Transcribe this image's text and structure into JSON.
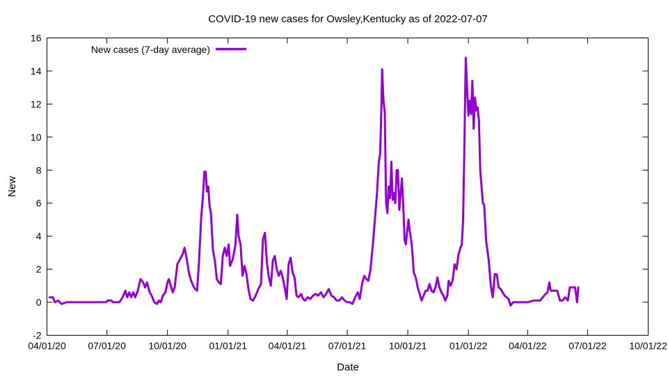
{
  "chart_data": {
    "type": "line",
    "title": "COVID-19 new cases for Owsley,Kentucky as of 2022-07-07",
    "xlabel": "Date",
    "ylabel": "New",
    "ylim": [
      -2,
      16
    ],
    "yticks": [
      -2,
      0,
      2,
      4,
      6,
      8,
      10,
      12,
      14,
      16
    ],
    "xlim": [
      "2020-04-01",
      "2022-10-01"
    ],
    "xticks": [
      {
        "date": "2020-04-01",
        "label": "04/01/20"
      },
      {
        "date": "2020-07-01",
        "label": "07/01/20"
      },
      {
        "date": "2020-10-01",
        "label": "10/01/20"
      },
      {
        "date": "2021-01-01",
        "label": "01/01/21"
      },
      {
        "date": "2021-04-01",
        "label": "04/01/21"
      },
      {
        "date": "2021-07-01",
        "label": "07/01/21"
      },
      {
        "date": "2021-10-01",
        "label": "10/01/21"
      },
      {
        "date": "2022-01-01",
        "label": "01/01/22"
      },
      {
        "date": "2022-04-01",
        "label": "04/01/22"
      },
      {
        "date": "2022-07-01",
        "label": "07/01/22"
      },
      {
        "date": "2022-10-01",
        "label": "10/01/22"
      }
    ],
    "legend": "top-left",
    "grid": false,
    "series": [
      {
        "name": "New cases (7-day average)",
        "color": "#9400d3",
        "points": [
          [
            "2020-04-05",
            0.3
          ],
          [
            "2020-04-10",
            0.3
          ],
          [
            "2020-04-13",
            0.0
          ],
          [
            "2020-04-18",
            0.1
          ],
          [
            "2020-04-23",
            -0.1
          ],
          [
            "2020-05-01",
            0.0
          ],
          [
            "2020-05-20",
            0.0
          ],
          [
            "2020-06-15",
            0.0
          ],
          [
            "2020-06-30",
            0.0
          ],
          [
            "2020-07-02",
            0.1
          ],
          [
            "2020-07-08",
            0.1
          ],
          [
            "2020-07-10",
            0.0
          ],
          [
            "2020-07-20",
            0.0
          ],
          [
            "2020-07-25",
            0.3
          ],
          [
            "2020-07-29",
            0.7
          ],
          [
            "2020-08-01",
            0.3
          ],
          [
            "2020-08-04",
            0.6
          ],
          [
            "2020-08-07",
            0.3
          ],
          [
            "2020-08-10",
            0.6
          ],
          [
            "2020-08-13",
            0.3
          ],
          [
            "2020-08-17",
            0.7
          ],
          [
            "2020-08-21",
            1.4
          ],
          [
            "2020-08-25",
            1.2
          ],
          [
            "2020-08-28",
            0.9
          ],
          [
            "2020-08-31",
            1.2
          ],
          [
            "2020-09-04",
            0.6
          ],
          [
            "2020-09-07",
            0.4
          ],
          [
            "2020-09-11",
            0.0
          ],
          [
            "2020-09-15",
            -0.1
          ],
          [
            "2020-09-18",
            0.1
          ],
          [
            "2020-09-21",
            0.0
          ],
          [
            "2020-09-24",
            0.4
          ],
          [
            "2020-09-28",
            0.6
          ],
          [
            "2020-10-01",
            1.2
          ],
          [
            "2020-10-03",
            1.4
          ],
          [
            "2020-10-06",
            1.0
          ],
          [
            "2020-10-09",
            0.6
          ],
          [
            "2020-10-12",
            0.9
          ],
          [
            "2020-10-16",
            2.3
          ],
          [
            "2020-10-20",
            2.6
          ],
          [
            "2020-10-24",
            2.9
          ],
          [
            "2020-10-27",
            3.3
          ],
          [
            "2020-10-30",
            2.7
          ],
          [
            "2020-11-03",
            1.7
          ],
          [
            "2020-11-06",
            1.3
          ],
          [
            "2020-11-09",
            1.0
          ],
          [
            "2020-11-12",
            0.8
          ],
          [
            "2020-11-15",
            0.7
          ],
          [
            "2020-11-18",
            2.5
          ],
          [
            "2020-11-21",
            5.0
          ],
          [
            "2020-11-24",
            6.5
          ],
          [
            "2020-11-26",
            7.9
          ],
          [
            "2020-11-28",
            7.9
          ],
          [
            "2020-11-30",
            6.7
          ],
          [
            "2020-12-02",
            7.0
          ],
          [
            "2020-12-04",
            5.8
          ],
          [
            "2020-12-06",
            5.4
          ],
          [
            "2020-12-09",
            3.2
          ],
          [
            "2020-12-12",
            2.5
          ],
          [
            "2020-12-15",
            1.4
          ],
          [
            "2020-12-18",
            1.2
          ],
          [
            "2020-12-21",
            1.1
          ],
          [
            "2020-12-24",
            2.8
          ],
          [
            "2020-12-27",
            3.3
          ],
          [
            "2020-12-30",
            2.8
          ],
          [
            "2021-01-02",
            3.5
          ],
          [
            "2021-01-04",
            2.2
          ],
          [
            "2021-01-08",
            2.6
          ],
          [
            "2021-01-12",
            3.4
          ],
          [
            "2021-01-15",
            5.3
          ],
          [
            "2021-01-17",
            4.0
          ],
          [
            "2021-01-20",
            3.5
          ],
          [
            "2021-01-23",
            1.6
          ],
          [
            "2021-01-26",
            2.2
          ],
          [
            "2021-01-29",
            1.7
          ],
          [
            "2021-02-01",
            0.8
          ],
          [
            "2021-02-04",
            0.2
          ],
          [
            "2021-02-08",
            0.1
          ],
          [
            "2021-02-12",
            0.4
          ],
          [
            "2021-02-16",
            0.8
          ],
          [
            "2021-02-20",
            1.1
          ],
          [
            "2021-02-23",
            3.8
          ],
          [
            "2021-02-26",
            4.2
          ],
          [
            "2021-03-01",
            2.4
          ],
          [
            "2021-03-04",
            1.5
          ],
          [
            "2021-03-07",
            1.0
          ],
          [
            "2021-03-10",
            2.5
          ],
          [
            "2021-03-13",
            2.8
          ],
          [
            "2021-03-16",
            2.0
          ],
          [
            "2021-03-19",
            1.6
          ],
          [
            "2021-03-22",
            1.9
          ],
          [
            "2021-03-25",
            1.5
          ],
          [
            "2021-03-28",
            0.9
          ],
          [
            "2021-03-31",
            0.2
          ],
          [
            "2021-04-03",
            2.3
          ],
          [
            "2021-04-06",
            2.7
          ],
          [
            "2021-04-09",
            1.8
          ],
          [
            "2021-04-12",
            1.5
          ],
          [
            "2021-04-15",
            0.4
          ],
          [
            "2021-04-18",
            0.3
          ],
          [
            "2021-04-22",
            0.5
          ],
          [
            "2021-04-25",
            0.2
          ],
          [
            "2021-04-28",
            0.1
          ],
          [
            "2021-05-02",
            0.3
          ],
          [
            "2021-05-06",
            0.2
          ],
          [
            "2021-05-10",
            0.4
          ],
          [
            "2021-05-14",
            0.5
          ],
          [
            "2021-05-18",
            0.4
          ],
          [
            "2021-05-22",
            0.6
          ],
          [
            "2021-05-26",
            0.3
          ],
          [
            "2021-05-30",
            0.5
          ],
          [
            "2021-06-03",
            0.8
          ],
          [
            "2021-06-07",
            0.4
          ],
          [
            "2021-06-11",
            0.3
          ],
          [
            "2021-06-15",
            0.1
          ],
          [
            "2021-06-19",
            0.1
          ],
          [
            "2021-06-23",
            0.3
          ],
          [
            "2021-06-27",
            0.1
          ],
          [
            "2021-07-01",
            0.0
          ],
          [
            "2021-07-05",
            0.0
          ],
          [
            "2021-07-09",
            -0.1
          ],
          [
            "2021-07-13",
            0.3
          ],
          [
            "2021-07-17",
            0.6
          ],
          [
            "2021-07-20",
            0.2
          ],
          [
            "2021-07-24",
            1.2
          ],
          [
            "2021-07-27",
            1.6
          ],
          [
            "2021-07-30",
            1.4
          ],
          [
            "2021-08-02",
            1.3
          ],
          [
            "2021-08-05",
            1.9
          ],
          [
            "2021-08-09",
            3.5
          ],
          [
            "2021-08-12",
            5.0
          ],
          [
            "2021-08-15",
            6.5
          ],
          [
            "2021-08-18",
            8.5
          ],
          [
            "2021-08-20",
            9.0
          ],
          [
            "2021-08-22",
            12.0
          ],
          [
            "2021-08-23",
            14.1
          ],
          [
            "2021-08-25",
            12.2
          ],
          [
            "2021-08-27",
            11.5
          ],
          [
            "2021-08-29",
            6.0
          ],
          [
            "2021-08-31",
            5.4
          ],
          [
            "2021-09-02",
            7.0
          ],
          [
            "2021-09-04",
            6.3
          ],
          [
            "2021-09-06",
            8.5
          ],
          [
            "2021-09-08",
            6.2
          ],
          [
            "2021-09-10",
            6.6
          ],
          [
            "2021-09-12",
            6.0
          ],
          [
            "2021-09-14",
            8.0
          ],
          [
            "2021-09-16",
            8.0
          ],
          [
            "2021-09-18",
            5.6
          ],
          [
            "2021-09-20",
            6.5
          ],
          [
            "2021-09-22",
            7.5
          ],
          [
            "2021-09-24",
            6.0
          ],
          [
            "2021-09-26",
            3.8
          ],
          [
            "2021-09-28",
            3.5
          ],
          [
            "2021-09-30",
            4.3
          ],
          [
            "2021-10-02",
            5.0
          ],
          [
            "2021-10-04",
            4.3
          ],
          [
            "2021-10-06",
            3.8
          ],
          [
            "2021-10-08",
            3.0
          ],
          [
            "2021-10-10",
            1.8
          ],
          [
            "2021-10-13",
            1.5
          ],
          [
            "2021-10-16",
            0.9
          ],
          [
            "2021-10-19",
            0.5
          ],
          [
            "2021-10-22",
            0.1
          ],
          [
            "2021-10-25",
            0.4
          ],
          [
            "2021-10-28",
            0.7
          ],
          [
            "2021-10-31",
            0.7
          ],
          [
            "2021-11-03",
            1.1
          ],
          [
            "2021-11-06",
            0.7
          ],
          [
            "2021-11-09",
            0.6
          ],
          [
            "2021-11-12",
            0.9
          ],
          [
            "2021-11-15",
            1.5
          ],
          [
            "2021-11-18",
            0.9
          ],
          [
            "2021-11-21",
            0.6
          ],
          [
            "2021-11-24",
            0.4
          ],
          [
            "2021-11-27",
            0.1
          ],
          [
            "2021-11-30",
            0.4
          ],
          [
            "2021-12-02",
            1.3
          ],
          [
            "2021-12-05",
            1.0
          ],
          [
            "2021-12-08",
            1.3
          ],
          [
            "2021-12-11",
            2.3
          ],
          [
            "2021-12-14",
            2.0
          ],
          [
            "2021-12-17",
            2.9
          ],
          [
            "2021-12-20",
            3.3
          ],
          [
            "2021-12-22",
            3.5
          ],
          [
            "2021-12-24",
            5.0
          ],
          [
            "2021-12-26",
            9.7
          ],
          [
            "2021-12-28",
            14.8
          ],
          [
            "2021-12-30",
            13.0
          ],
          [
            "2022-01-01",
            11.3
          ],
          [
            "2022-01-03",
            12.2
          ],
          [
            "2022-01-05",
            11.4
          ],
          [
            "2022-01-07",
            13.4
          ],
          [
            "2022-01-09",
            10.5
          ],
          [
            "2022-01-11",
            12.4
          ],
          [
            "2022-01-13",
            11.6
          ],
          [
            "2022-01-15",
            11.8
          ],
          [
            "2022-01-17",
            11.0
          ],
          [
            "2022-01-19",
            8.0
          ],
          [
            "2022-01-21",
            7.0
          ],
          [
            "2022-01-23",
            6.0
          ],
          [
            "2022-01-25",
            5.9
          ],
          [
            "2022-01-28",
            3.7
          ],
          [
            "2022-02-01",
            2.5
          ],
          [
            "2022-02-04",
            1.0
          ],
          [
            "2022-02-07",
            0.3
          ],
          [
            "2022-02-10",
            1.7
          ],
          [
            "2022-02-13",
            1.7
          ],
          [
            "2022-02-16",
            0.9
          ],
          [
            "2022-02-19",
            0.8
          ],
          [
            "2022-02-22",
            0.6
          ],
          [
            "2022-02-25",
            0.4
          ],
          [
            "2022-02-28",
            0.3
          ],
          [
            "2022-03-03",
            0.2
          ],
          [
            "2022-03-06",
            -0.2
          ],
          [
            "2022-03-10",
            0.0
          ],
          [
            "2022-03-15",
            0.0
          ],
          [
            "2022-03-25",
            0.0
          ],
          [
            "2022-04-01",
            0.0
          ],
          [
            "2022-04-10",
            0.1
          ],
          [
            "2022-04-20",
            0.1
          ],
          [
            "2022-04-26",
            0.4
          ],
          [
            "2022-05-01",
            0.6
          ],
          [
            "2022-05-04",
            1.2
          ],
          [
            "2022-05-06",
            0.7
          ],
          [
            "2022-05-10",
            0.7
          ],
          [
            "2022-05-16",
            0.7
          ],
          [
            "2022-05-20",
            0.1
          ],
          [
            "2022-05-24",
            0.1
          ],
          [
            "2022-05-28",
            0.3
          ],
          [
            "2022-06-01",
            0.1
          ],
          [
            "2022-06-04",
            0.9
          ],
          [
            "2022-06-08",
            0.9
          ],
          [
            "2022-06-12",
            0.9
          ],
          [
            "2022-06-15",
            0.0
          ],
          [
            "2022-06-17",
            0.9
          ]
        ]
      }
    ]
  }
}
